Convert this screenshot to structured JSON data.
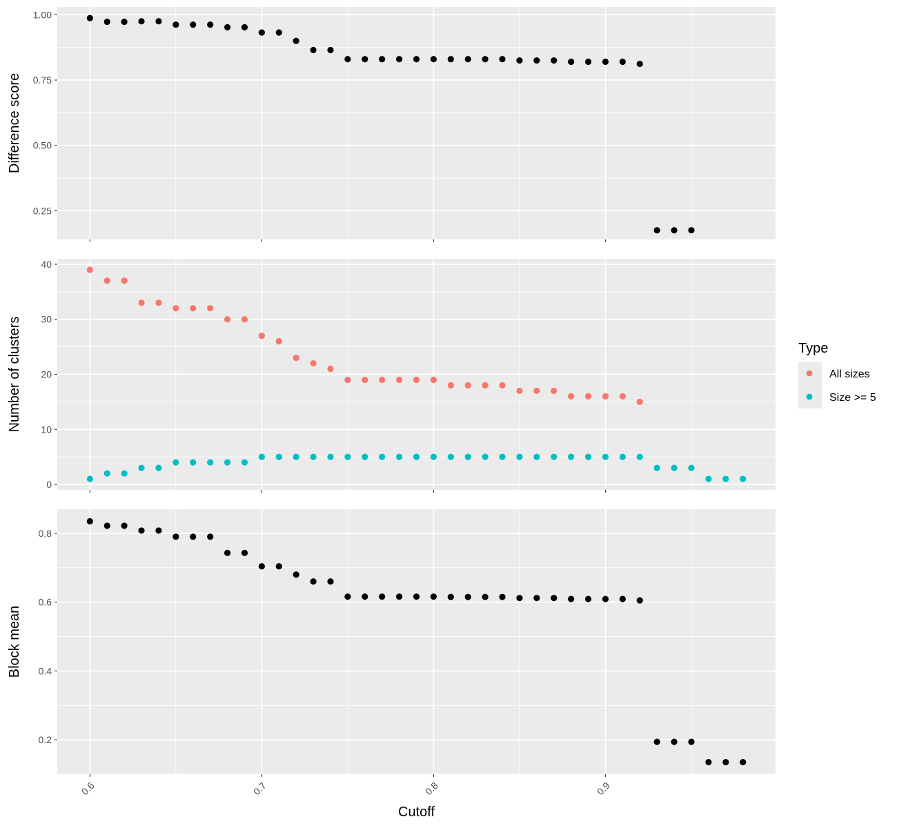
{
  "chart_data": {
    "type": "scatter",
    "xlabel": "Cutoff",
    "x_ticks": [
      "0.6",
      "0.7",
      "0.8",
      "0.9"
    ],
    "xlim": [
      0.581,
      0.999
    ],
    "panel_background": "#ebebeb",
    "grid": true,
    "legend": {
      "title": "Type",
      "placement": "right",
      "entries": [
        {
          "label": "All sizes",
          "color": "#f8766d"
        },
        {
          "label": "Size >= 5",
          "color": "#00bfc4"
        }
      ]
    },
    "panels": [
      {
        "ylabel": "Difference score",
        "ylim": [
          0.14,
          1.03
        ],
        "y_ticks": [
          "0.25",
          "0.50",
          "0.75",
          "1.00"
        ],
        "series": [
          {
            "color": "#000000",
            "x": [
              0.6,
              0.61,
              0.62,
              0.63,
              0.64,
              0.65,
              0.66,
              0.67,
              0.68,
              0.69,
              0.7,
              0.71,
              0.72,
              0.73,
              0.74,
              0.75,
              0.76,
              0.77,
              0.78,
              0.79,
              0.8,
              0.81,
              0.82,
              0.83,
              0.84,
              0.85,
              0.86,
              0.87,
              0.88,
              0.89,
              0.9,
              0.91,
              0.92,
              0.93,
              0.94,
              0.95
            ],
            "y": [
              0.987,
              0.973,
              0.973,
              0.975,
              0.975,
              0.962,
              0.962,
              0.962,
              0.952,
              0.952,
              0.932,
              0.932,
              0.9,
              0.865,
              0.865,
              0.83,
              0.83,
              0.83,
              0.83,
              0.83,
              0.83,
              0.83,
              0.83,
              0.83,
              0.83,
              0.825,
              0.825,
              0.825,
              0.82,
              0.82,
              0.82,
              0.82,
              0.812,
              0.175,
              0.175,
              0.175
            ]
          }
        ]
      },
      {
        "ylabel": "Number of clusters",
        "ylim": [
          -1,
          41
        ],
        "y_ticks": [
          "0",
          "10",
          "20",
          "30",
          "40"
        ],
        "series": [
          {
            "name": "All sizes",
            "color": "#f8766d",
            "x": [
              0.6,
              0.61,
              0.62,
              0.63,
              0.64,
              0.65,
              0.66,
              0.67,
              0.68,
              0.69,
              0.7,
              0.71,
              0.72,
              0.73,
              0.74,
              0.75,
              0.76,
              0.77,
              0.78,
              0.79,
              0.8,
              0.81,
              0.82,
              0.83,
              0.84,
              0.85,
              0.86,
              0.87,
              0.88,
              0.89,
              0.9,
              0.91,
              0.92
            ],
            "y": [
              39,
              37,
              37,
              33,
              33,
              32,
              32,
              32,
              30,
              30,
              27,
              26,
              23,
              22,
              21,
              19,
              19,
              19,
              19,
              19,
              19,
              18,
              18,
              18,
              18,
              17,
              17,
              17,
              16,
              16,
              16,
              16,
              15
            ]
          },
          {
            "name": "Size >= 5",
            "color": "#00bfc4",
            "x": [
              0.6,
              0.61,
              0.62,
              0.63,
              0.64,
              0.65,
              0.66,
              0.67,
              0.68,
              0.69,
              0.7,
              0.71,
              0.72,
              0.73,
              0.74,
              0.75,
              0.76,
              0.77,
              0.78,
              0.79,
              0.8,
              0.81,
              0.82,
              0.83,
              0.84,
              0.85,
              0.86,
              0.87,
              0.88,
              0.89,
              0.9,
              0.91,
              0.92,
              0.93,
              0.94,
              0.95,
              0.96,
              0.97,
              0.98
            ],
            "y": [
              1,
              2,
              2,
              3,
              3,
              4,
              4,
              4,
              4,
              4,
              5,
              5,
              5,
              5,
              5,
              5,
              5,
              5,
              5,
              5,
              5,
              5,
              5,
              5,
              5,
              5,
              5,
              5,
              5,
              5,
              5,
              5,
              5,
              3,
              3,
              3,
              1,
              1,
              1
            ]
          }
        ]
      },
      {
        "ylabel": "Block mean",
        "ylim": [
          0.1,
          0.87
        ],
        "y_ticks": [
          "0.2",
          "0.4",
          "0.6",
          "0.8"
        ],
        "series": [
          {
            "color": "#000000",
            "x": [
              0.6,
              0.61,
              0.62,
              0.63,
              0.64,
              0.65,
              0.66,
              0.67,
              0.68,
              0.69,
              0.7,
              0.71,
              0.72,
              0.73,
              0.74,
              0.75,
              0.76,
              0.77,
              0.78,
              0.79,
              0.8,
              0.81,
              0.82,
              0.83,
              0.84,
              0.85,
              0.86,
              0.87,
              0.88,
              0.89,
              0.9,
              0.91,
              0.92,
              0.93,
              0.94,
              0.95,
              0.96,
              0.97,
              0.98
            ],
            "y": [
              0.835,
              0.822,
              0.822,
              0.808,
              0.808,
              0.79,
              0.79,
              0.79,
              0.743,
              0.743,
              0.704,
              0.704,
              0.68,
              0.66,
              0.66,
              0.616,
              0.616,
              0.616,
              0.616,
              0.616,
              0.616,
              0.615,
              0.615,
              0.615,
              0.615,
              0.612,
              0.612,
              0.612,
              0.609,
              0.609,
              0.609,
              0.609,
              0.605,
              0.194,
              0.194,
              0.194,
              0.135,
              0.135,
              0.135
            ]
          }
        ]
      }
    ]
  }
}
